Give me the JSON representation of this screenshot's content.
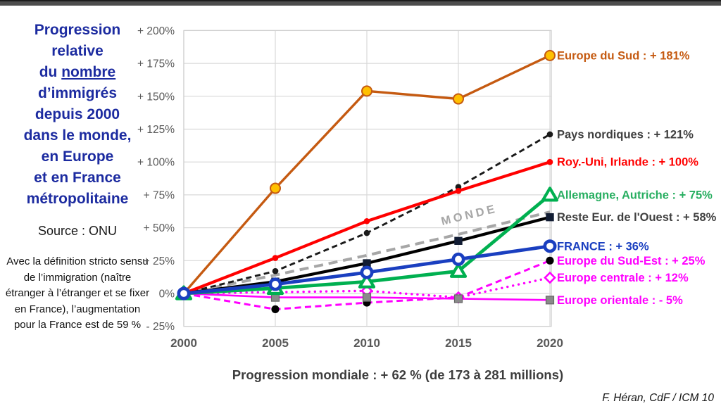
{
  "panel": {
    "title_lines": [
      "Progression",
      "relative"
    ],
    "title_du": "du ",
    "title_nombre": "nombre",
    "title_rest": [
      "d’immigrés",
      "depuis 2000",
      "dans le monde,",
      "en Europe",
      "et en France",
      "métropolitaine"
    ],
    "source": "Source : ONU",
    "note": "Avec la définition stricto sensu de l’immigration (naître étranger à l’étranger et se fixer en France), l’augmentation pour la France est de 59 %"
  },
  "chart_data": {
    "type": "line",
    "x": [
      2000,
      2005,
      2010,
      2015,
      2020
    ],
    "x_tick_labels": [
      "2000",
      "2005",
      "2010",
      "2015",
      "2020"
    ],
    "y_ticks": [
      200,
      175,
      150,
      125,
      100,
      75,
      50,
      25,
      0,
      -25
    ],
    "y_tick_labels": [
      "+ 200%",
      "+ 175%",
      "+ 150%",
      "+ 125%",
      "+ 100%",
      "+ 75%",
      "+ 50%",
      "+ 25%",
      "0%",
      "- 25%"
    ],
    "ylim": [
      -25,
      200
    ],
    "grid": true,
    "legend_position": "right-of-plot, aligned to 2020 endpoints",
    "world_inline_label": "MONDE",
    "series": [
      {
        "name": "Europe du Sud",
        "label": "Europe du Sud : + 181%",
        "color": "#c55a11",
        "line": "solid",
        "marker": "circle-gold",
        "values": [
          0,
          80,
          154,
          148,
          181
        ]
      },
      {
        "name": "Pays nordiques",
        "label": "Pays nordiques : + 121%",
        "color": "#1a1a1a",
        "label_color": "#404040",
        "line": "dashed",
        "marker": "dot",
        "values": [
          0,
          17,
          46,
          81,
          121
        ]
      },
      {
        "name": "Roy.-Uni, Irlande",
        "label": "Roy.-Uni, Irlande : + 100%",
        "color": "#ff0000",
        "line": "solid",
        "marker": "dot",
        "values": [
          0,
          27,
          55,
          78,
          100
        ]
      },
      {
        "name": "Allemagne, Autriche",
        "label": "Allemagne, Autriche : + 75%",
        "color": "#00b050",
        "label_color": "#27ae60",
        "line": "solid",
        "marker": "triangle-open",
        "values": [
          0,
          4,
          9,
          17,
          75
        ]
      },
      {
        "name": "MONDE",
        "label": null,
        "color": "#a6a6a6",
        "line": "dashed",
        "marker": "none",
        "values": [
          0,
          14,
          29,
          45,
          62
        ]
      },
      {
        "name": "Reste Eur. de l'Ouest",
        "label": "Reste Eur. de l'Ouest : + 58%",
        "color": "#000000",
        "label_color": "#404040",
        "line": "solid",
        "marker": "square-dark",
        "values": [
          0,
          9,
          23,
          40,
          58
        ]
      },
      {
        "name": "FRANCE",
        "label": "FRANCE : + 36%",
        "color": "#1a3fc0",
        "line": "solid",
        "marker": "circle-open",
        "values": [
          0,
          7,
          16,
          26,
          36
        ],
        "bold": true
      },
      {
        "name": "Europe du Sud-Est",
        "label": "Europe du Sud-Est : + 25%",
        "color": "#ff00ff",
        "line": "dashed",
        "marker": "dot-black",
        "values": [
          0,
          -12,
          -7,
          -3,
          25
        ]
      },
      {
        "name": "Europe centrale",
        "label": "Europe centrale : + 12%",
        "color": "#ff00ff",
        "line": "dotted",
        "marker": "diamond-open",
        "values": [
          0,
          1,
          2,
          -3,
          12
        ]
      },
      {
        "name": "Europe orientale",
        "label": "Europe orientale : - 5%",
        "color": "#ff00ff",
        "line": "solid",
        "marker": "square-gray",
        "values": [
          0,
          -3,
          -3,
          -4,
          -5
        ]
      }
    ],
    "caption": "Progression mondiale : + 62 % (de 173 à 281 millions)",
    "credit": "F. Héran, CdF / ICM  10"
  }
}
